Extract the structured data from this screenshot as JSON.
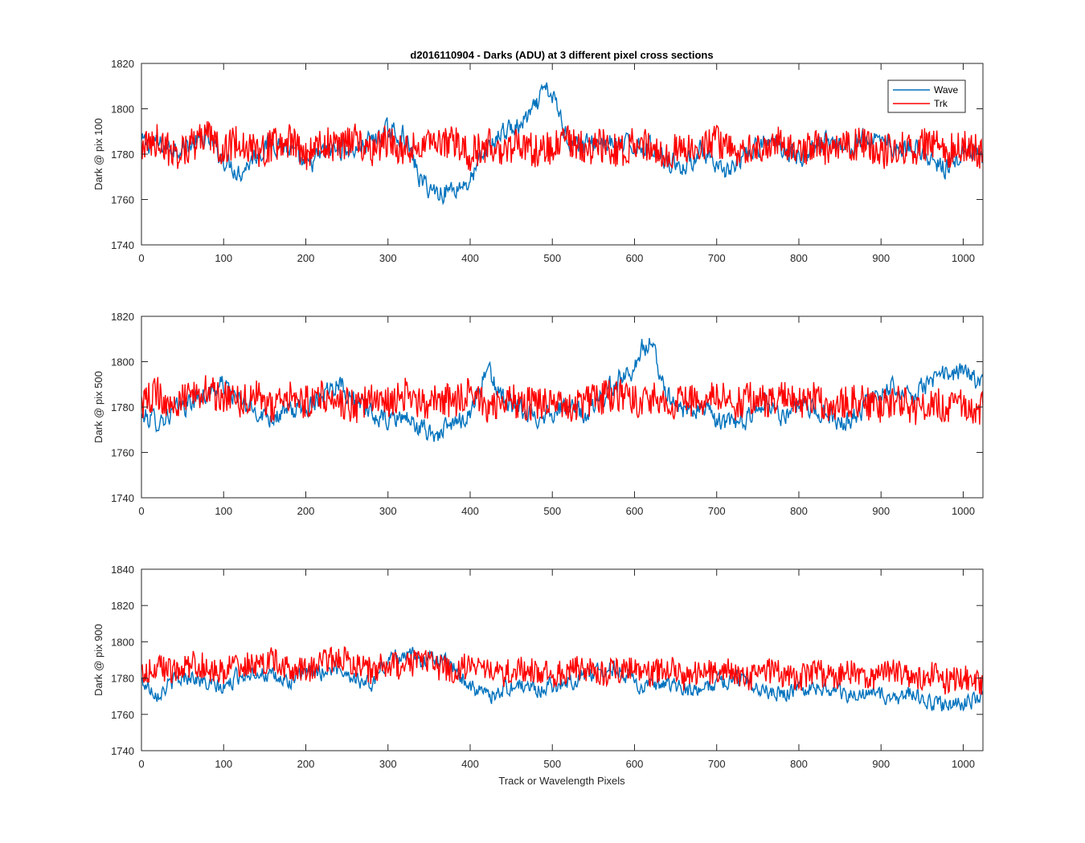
{
  "title": "d2016110904 - Darks (ADU) at 3 different pixel cross sections",
  "xlabel": "Track or Wavelength Pixels",
  "legend": {
    "position": "top-right",
    "entries": [
      {
        "label": "Wave",
        "color": "#0072BD"
      },
      {
        "label": "Trk",
        "color": "#FF0000"
      }
    ]
  },
  "chart_data": [
    {
      "type": "line",
      "ylabel": "Dark @ pix 100",
      "xlim": [
        0,
        1024
      ],
      "ylim": [
        1740,
        1820
      ],
      "xticks": [
        0,
        100,
        200,
        300,
        400,
        500,
        600,
        700,
        800,
        900,
        1000
      ],
      "yticks": [
        1740,
        1760,
        1780,
        1800,
        1820
      ],
      "series": [
        {
          "name": "Wave",
          "color": "#0072BD",
          "x": [
            0,
            20,
            40,
            60,
            80,
            100,
            120,
            140,
            160,
            180,
            200,
            220,
            240,
            260,
            280,
            300,
            320,
            340,
            360,
            380,
            400,
            420,
            440,
            460,
            480,
            490,
            500,
            510,
            520,
            540,
            560,
            580,
            600,
            620,
            640,
            660,
            680,
            700,
            720,
            740,
            760,
            780,
            800,
            820,
            840,
            860,
            880,
            900,
            920,
            940,
            960,
            980,
            1000,
            1024
          ],
          "y": [
            1785,
            1784,
            1783,
            1784,
            1787,
            1778,
            1772,
            1780,
            1786,
            1782,
            1774,
            1780,
            1783,
            1782,
            1786,
            1790,
            1788,
            1768,
            1763,
            1765,
            1768,
            1782,
            1790,
            1792,
            1800,
            1808,
            1806,
            1796,
            1786,
            1784,
            1786,
            1783,
            1784,
            1783,
            1778,
            1774,
            1782,
            1772,
            1774,
            1780,
            1785,
            1784,
            1778,
            1784,
            1786,
            1783,
            1786,
            1788,
            1782,
            1784,
            1776,
            1774,
            1780,
            1778
          ]
        },
        {
          "name": "Trk",
          "color": "#FF0000",
          "x": [
            0,
            20,
            40,
            60,
            80,
            100,
            120,
            140,
            160,
            180,
            200,
            220,
            240,
            260,
            280,
            300,
            320,
            340,
            360,
            380,
            400,
            420,
            440,
            460,
            480,
            500,
            520,
            540,
            560,
            580,
            600,
            620,
            640,
            660,
            680,
            700,
            720,
            740,
            760,
            780,
            800,
            820,
            840,
            860,
            880,
            900,
            920,
            940,
            960,
            980,
            1000,
            1024
          ],
          "y": [
            1783,
            1786,
            1780,
            1784,
            1788,
            1782,
            1786,
            1781,
            1784,
            1786,
            1780,
            1785,
            1783,
            1787,
            1782,
            1786,
            1781,
            1784,
            1783,
            1786,
            1780,
            1784,
            1782,
            1785,
            1781,
            1783,
            1786,
            1782,
            1784,
            1781,
            1785,
            1783,
            1780,
            1784,
            1782,
            1786,
            1781,
            1784,
            1782,
            1786,
            1780,
            1784,
            1781,
            1783,
            1786,
            1780,
            1784,
            1782,
            1785,
            1781,
            1784,
            1780
          ]
        }
      ]
    },
    {
      "type": "line",
      "ylabel": "Dark @ pix 500",
      "xlim": [
        0,
        1024
      ],
      "ylim": [
        1740,
        1820
      ],
      "xticks": [
        0,
        100,
        200,
        300,
        400,
        500,
        600,
        700,
        800,
        900,
        1000
      ],
      "yticks": [
        1740,
        1760,
        1780,
        1800,
        1820
      ],
      "series": [
        {
          "name": "Wave",
          "color": "#0072BD",
          "x": [
            0,
            20,
            40,
            60,
            80,
            100,
            120,
            140,
            160,
            180,
            200,
            220,
            240,
            260,
            280,
            300,
            320,
            340,
            360,
            380,
            400,
            420,
            440,
            460,
            480,
            500,
            520,
            540,
            560,
            580,
            600,
            610,
            620,
            630,
            640,
            660,
            680,
            700,
            720,
            740,
            760,
            780,
            800,
            820,
            840,
            860,
            880,
            900,
            920,
            940,
            960,
            980,
            1000,
            1024
          ],
          "y": [
            1776,
            1774,
            1778,
            1782,
            1786,
            1790,
            1782,
            1778,
            1776,
            1778,
            1780,
            1786,
            1792,
            1782,
            1776,
            1774,
            1776,
            1770,
            1768,
            1772,
            1778,
            1796,
            1784,
            1778,
            1776,
            1778,
            1780,
            1776,
            1784,
            1792,
            1798,
            1806,
            1808,
            1796,
            1786,
            1778,
            1780,
            1774,
            1772,
            1776,
            1784,
            1776,
            1780,
            1778,
            1776,
            1774,
            1780,
            1786,
            1790,
            1784,
            1792,
            1794,
            1796,
            1790
          ]
        },
        {
          "name": "Trk",
          "color": "#FF0000",
          "x": [
            0,
            20,
            40,
            60,
            80,
            100,
            120,
            140,
            160,
            180,
            200,
            220,
            240,
            260,
            280,
            300,
            320,
            340,
            360,
            380,
            400,
            420,
            440,
            460,
            480,
            500,
            520,
            540,
            560,
            580,
            600,
            620,
            640,
            660,
            680,
            700,
            720,
            740,
            760,
            780,
            800,
            820,
            840,
            860,
            880,
            900,
            920,
            940,
            960,
            980,
            1000,
            1024
          ],
          "y": [
            1782,
            1786,
            1780,
            1785,
            1788,
            1784,
            1782,
            1786,
            1780,
            1784,
            1782,
            1786,
            1783,
            1780,
            1784,
            1782,
            1786,
            1781,
            1784,
            1782,
            1786,
            1780,
            1784,
            1782,
            1781,
            1784,
            1778,
            1782,
            1784,
            1786,
            1782,
            1784,
            1781,
            1783,
            1782,
            1786,
            1780,
            1784,
            1782,
            1785,
            1781,
            1784,
            1780,
            1783,
            1782,
            1780,
            1784,
            1779,
            1782,
            1780,
            1781,
            1779
          ]
        }
      ]
    },
    {
      "type": "line",
      "ylabel": "Dark @ pix 900",
      "xlim": [
        0,
        1024
      ],
      "ylim": [
        1740,
        1840
      ],
      "xticks": [
        0,
        100,
        200,
        300,
        400,
        500,
        600,
        700,
        800,
        900,
        1000
      ],
      "yticks": [
        1740,
        1760,
        1780,
        1800,
        1820,
        1840
      ],
      "series": [
        {
          "name": "Wave",
          "color": "#0072BD",
          "x": [
            0,
            20,
            40,
            60,
            80,
            100,
            120,
            140,
            160,
            180,
            200,
            220,
            240,
            260,
            280,
            300,
            320,
            340,
            360,
            380,
            400,
            420,
            440,
            460,
            480,
            500,
            520,
            540,
            560,
            580,
            600,
            620,
            640,
            660,
            680,
            700,
            720,
            740,
            760,
            780,
            800,
            820,
            840,
            860,
            880,
            900,
            920,
            940,
            960,
            980,
            1000,
            1024
          ],
          "y": [
            1778,
            1772,
            1778,
            1782,
            1776,
            1774,
            1782,
            1784,
            1780,
            1778,
            1782,
            1784,
            1786,
            1780,
            1776,
            1790,
            1794,
            1790,
            1792,
            1786,
            1776,
            1770,
            1774,
            1776,
            1774,
            1776,
            1778,
            1782,
            1784,
            1786,
            1778,
            1774,
            1776,
            1774,
            1772,
            1778,
            1780,
            1778,
            1774,
            1772,
            1774,
            1776,
            1774,
            1770,
            1772,
            1770,
            1768,
            1772,
            1766,
            1764,
            1766,
            1770
          ]
        },
        {
          "name": "Trk",
          "color": "#FF0000",
          "x": [
            0,
            20,
            40,
            60,
            80,
            100,
            120,
            140,
            160,
            180,
            200,
            220,
            240,
            260,
            280,
            300,
            320,
            340,
            360,
            380,
            400,
            420,
            440,
            460,
            480,
            500,
            520,
            540,
            560,
            580,
            600,
            620,
            640,
            660,
            680,
            700,
            720,
            740,
            760,
            780,
            800,
            820,
            840,
            860,
            880,
            900,
            920,
            940,
            960,
            980,
            1000,
            1024
          ],
          "y": [
            1782,
            1786,
            1784,
            1788,
            1786,
            1784,
            1788,
            1786,
            1790,
            1786,
            1784,
            1788,
            1792,
            1786,
            1784,
            1788,
            1786,
            1790,
            1786,
            1784,
            1788,
            1784,
            1782,
            1786,
            1784,
            1782,
            1784,
            1786,
            1782,
            1784,
            1786,
            1782,
            1786,
            1780,
            1784,
            1782,
            1784,
            1780,
            1784,
            1782,
            1780,
            1784,
            1780,
            1784,
            1780,
            1782,
            1784,
            1780,
            1782,
            1778,
            1780,
            1778
          ]
        }
      ]
    }
  ]
}
